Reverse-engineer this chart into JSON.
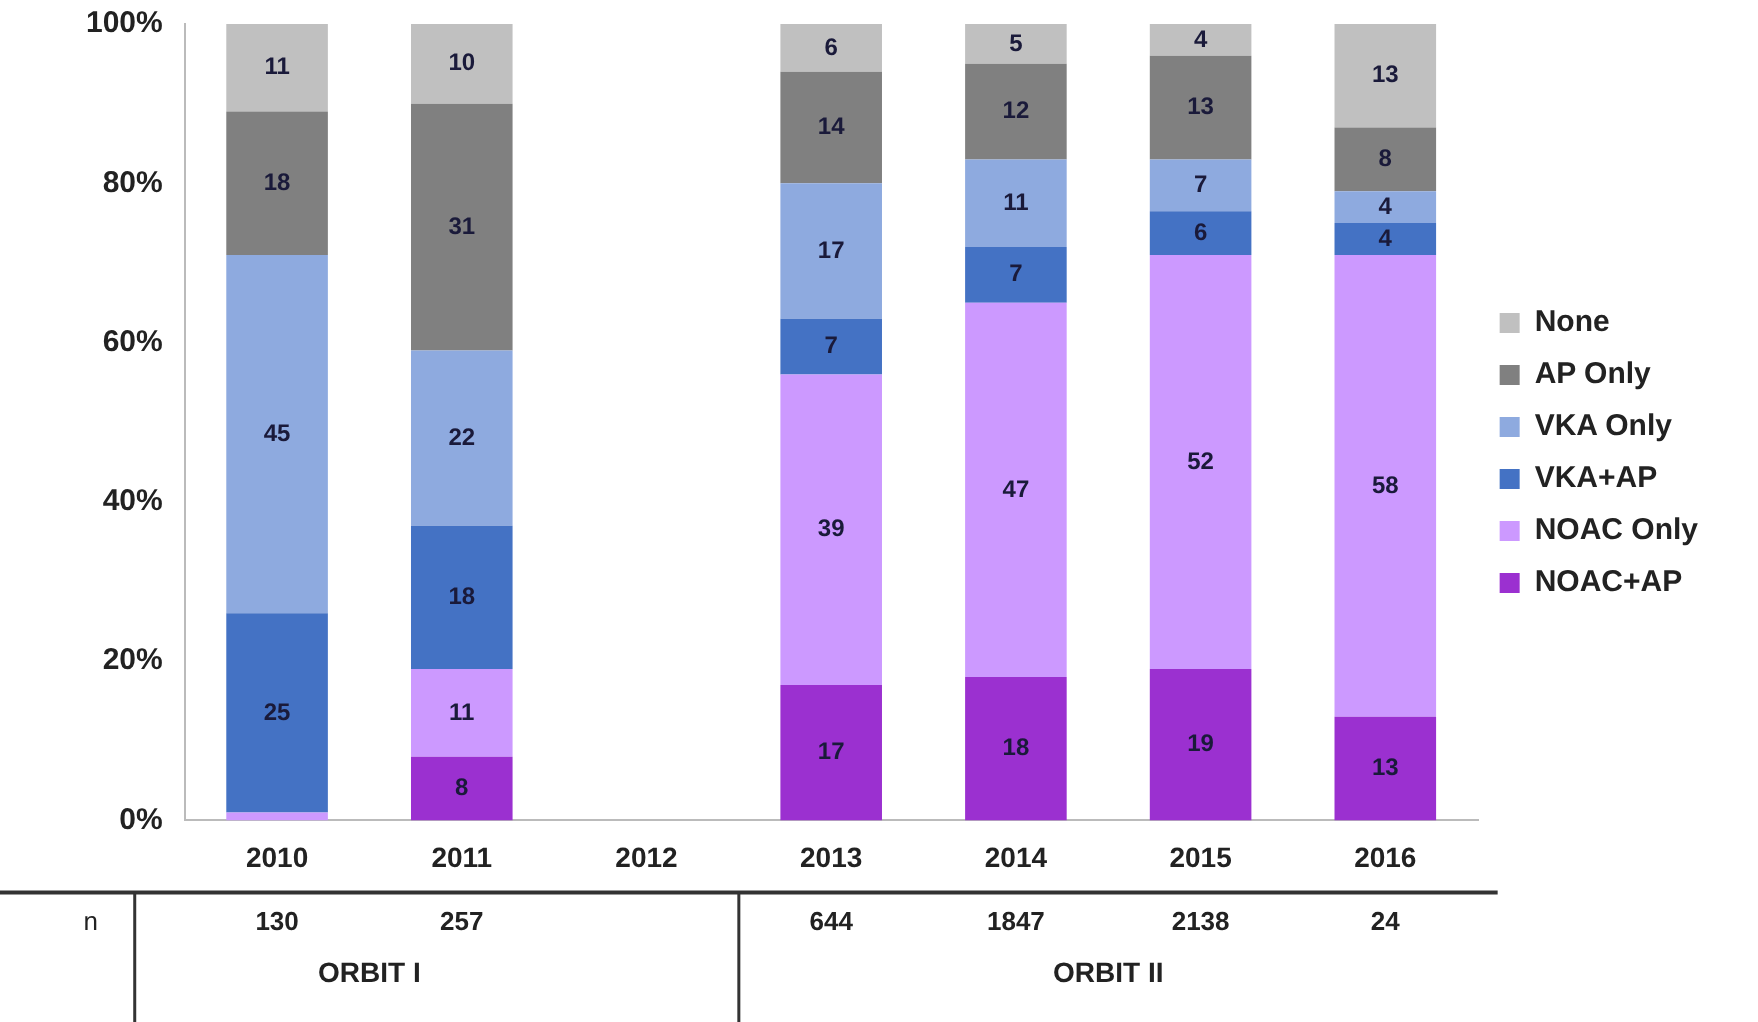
{
  "chart_data": {
    "type": "bar",
    "stacked": true,
    "categories": [
      "2010",
      "2011",
      "2012",
      "2013",
      "2014",
      "2015",
      "2016"
    ],
    "ylim": [
      0,
      100
    ],
    "yticks": [
      {
        "value": 0,
        "label": "0%"
      },
      {
        "value": 20,
        "label": "20%"
      },
      {
        "value": 40,
        "label": "40%"
      },
      {
        "value": 60,
        "label": "60%"
      },
      {
        "value": 80,
        "label": "80%"
      },
      {
        "value": 100,
        "label": "100%"
      }
    ],
    "grid": false,
    "legend": "right",
    "series": [
      {
        "name": "NOAC+AP",
        "color": "#9b30d0",
        "values": [
          0,
          8,
          null,
          17,
          18,
          19,
          13
        ],
        "value_labels": [
          null,
          "8",
          null,
          "17",
          "18",
          "19",
          "13"
        ]
      },
      {
        "name": "NOAC Only",
        "color": "#cc99ff",
        "values": [
          1,
          11,
          null,
          39,
          47,
          52,
          58
        ],
        "value_labels": [
          null,
          "11",
          null,
          "39",
          "47",
          "52",
          "58"
        ]
      },
      {
        "name": "VKA+AP",
        "color": "#4472c4",
        "values": [
          25,
          18,
          null,
          7,
          7,
          5.5,
          4
        ],
        "value_labels": [
          "25",
          "18",
          null,
          "7",
          "7",
          "6",
          "4"
        ]
      },
      {
        "name": "VKA Only",
        "color": "#8eaadf",
        "values": [
          45,
          22,
          null,
          17,
          11,
          6.5,
          4
        ],
        "value_labels": [
          "45",
          "22",
          null,
          "17",
          "11",
          "7",
          "4"
        ]
      },
      {
        "name": "AP Only",
        "color": "#808080",
        "values": [
          18,
          31,
          null,
          14,
          12,
          13,
          8
        ],
        "value_labels": [
          "18",
          "31",
          null,
          "14",
          "12",
          "13",
          "8"
        ]
      },
      {
        "name": "None",
        "color": "#c0c0c0",
        "values": [
          11,
          10,
          null,
          6,
          5,
          4,
          13
        ],
        "value_labels": [
          "11",
          "10",
          null,
          "6",
          "5",
          "4",
          "13"
        ]
      }
    ],
    "annotations": [
      "n",
      "130",
      "257",
      "644",
      "1847",
      "2138",
      "24",
      "ORBIT I",
      "ORBIT II"
    ]
  }
}
